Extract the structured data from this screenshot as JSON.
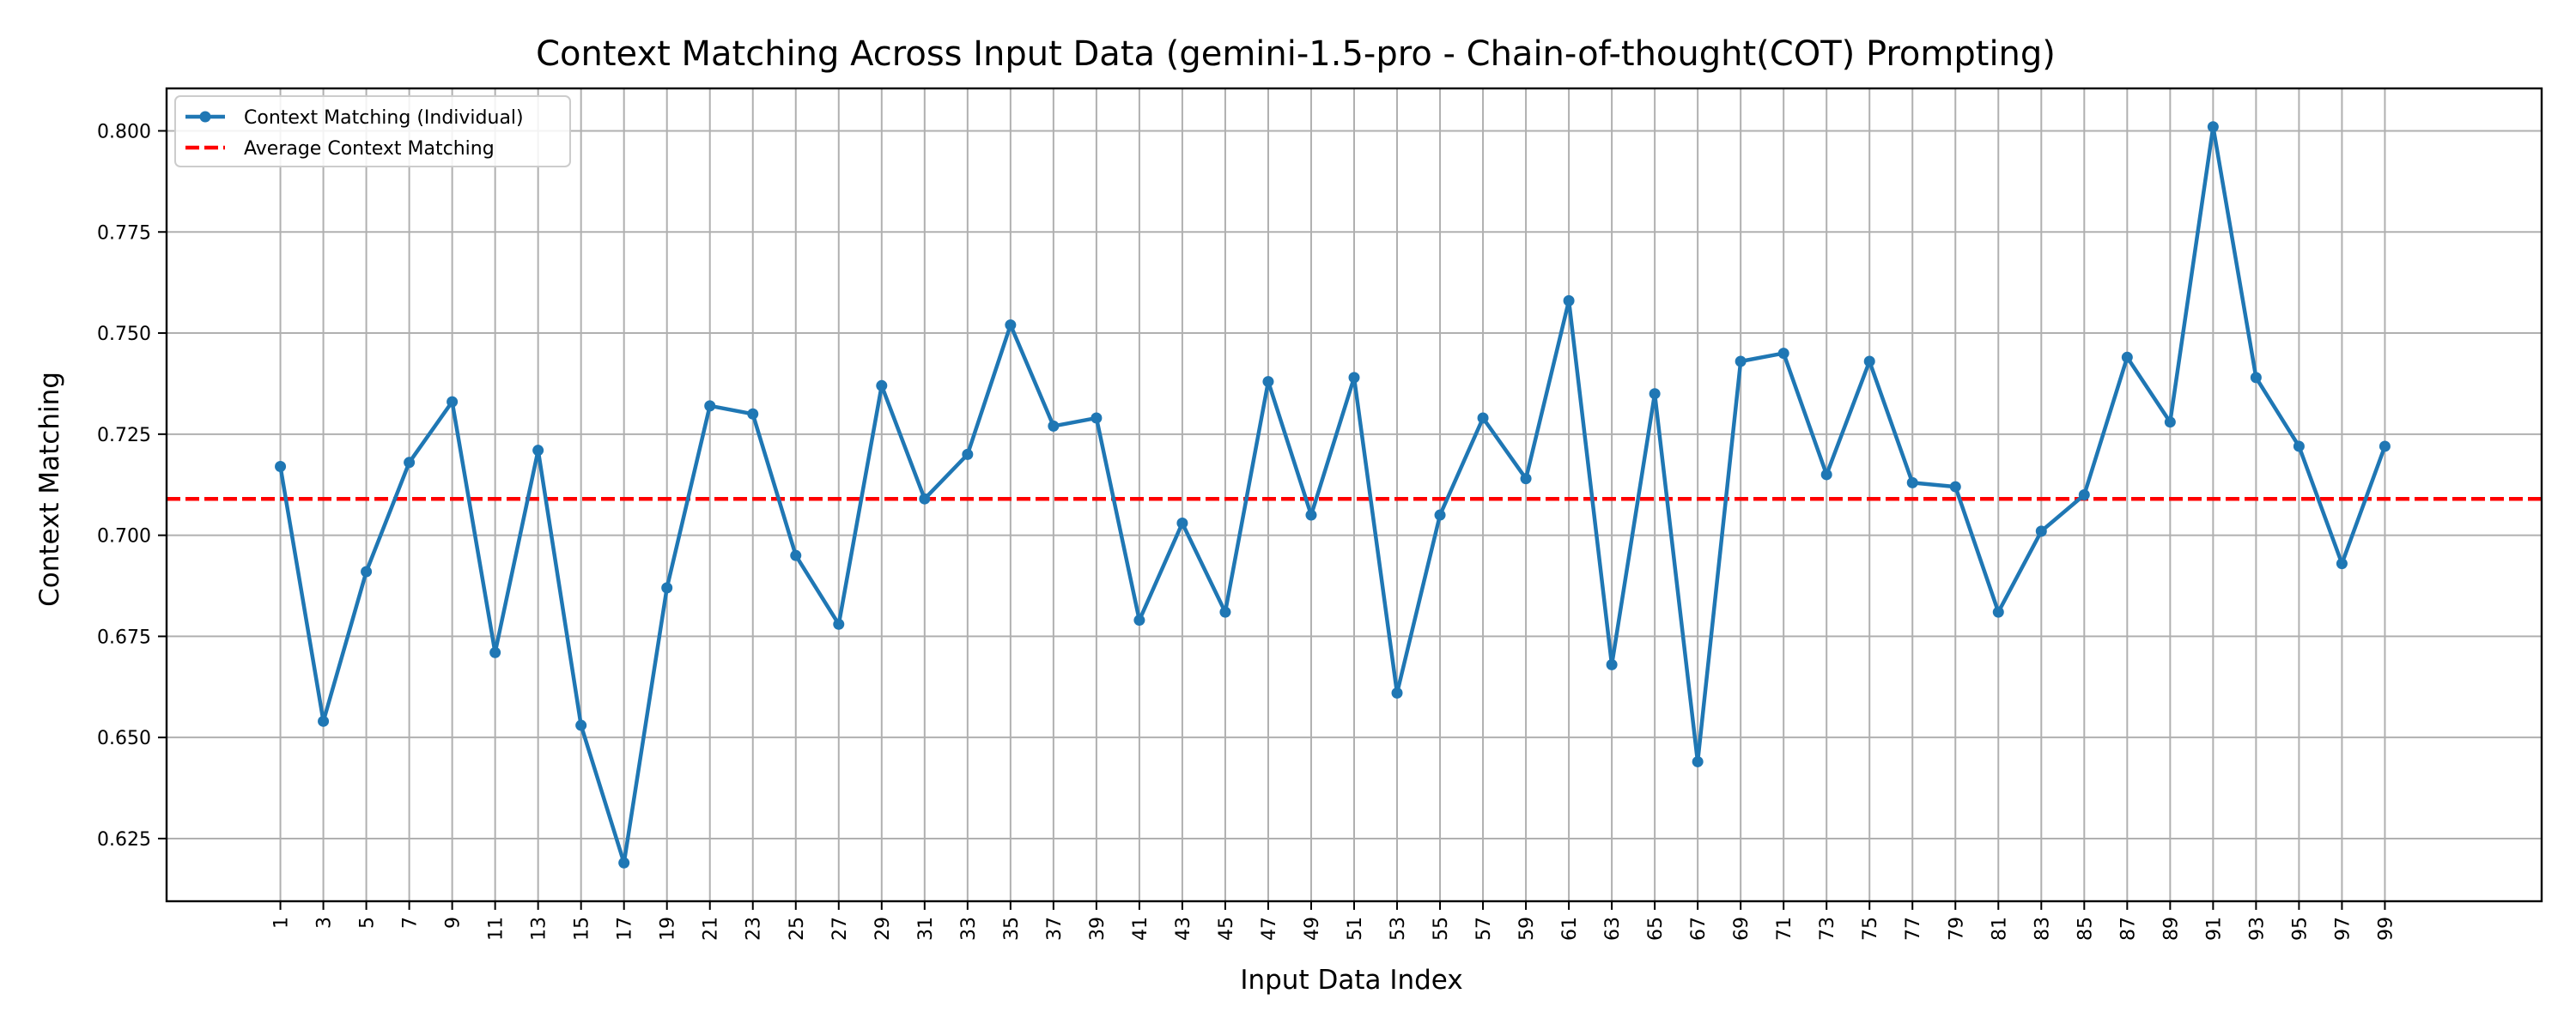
{
  "chart_data": {
    "type": "line",
    "title": "Context Matching Across Input Data (gemini-1.5-pro - Chain-of-thought(COT) Prompting)",
    "xlabel": "Input Data Index",
    "ylabel": "Context Matching",
    "xlim": [
      -4.3,
      106.3
    ],
    "ylim": [
      0.6095,
      0.8105
    ],
    "xticks": [
      1,
      3,
      5,
      7,
      9,
      11,
      13,
      15,
      17,
      19,
      21,
      23,
      25,
      27,
      29,
      31,
      33,
      35,
      37,
      39,
      41,
      43,
      45,
      47,
      49,
      51,
      53,
      55,
      57,
      59,
      61,
      63,
      65,
      67,
      69,
      71,
      73,
      75,
      77,
      79,
      81,
      83,
      85,
      87,
      89,
      91,
      93,
      95,
      97,
      99
    ],
    "yticks": [
      0.625,
      0.65,
      0.675,
      0.7,
      0.725,
      0.75,
      0.775,
      0.8
    ],
    "ytick_labels": [
      "0.625",
      "0.650",
      "0.675",
      "0.700",
      "0.725",
      "0.750",
      "0.775",
      "0.800"
    ],
    "grid": true,
    "legend_position": "top-left",
    "series": [
      {
        "name": "Context Matching (Individual)",
        "style": "solid-line-with-markers",
        "color": "#1f77b4",
        "x": [
          1,
          3,
          5,
          7,
          9,
          11,
          13,
          15,
          17,
          19,
          21,
          23,
          25,
          27,
          29,
          31,
          33,
          35,
          37,
          39,
          41,
          43,
          45,
          47,
          49,
          51,
          53,
          55,
          57,
          59,
          61,
          63,
          65,
          67,
          69,
          71,
          73,
          75,
          77,
          79,
          81,
          83,
          85,
          87,
          89,
          91,
          93,
          95,
          97,
          99
        ],
        "y": [
          0.717,
          0.654,
          0.691,
          0.718,
          0.733,
          0.671,
          0.721,
          0.653,
          0.619,
          0.687,
          0.732,
          0.73,
          0.695,
          0.678,
          0.737,
          0.709,
          0.72,
          0.752,
          0.727,
          0.729,
          0.679,
          0.703,
          0.681,
          0.738,
          0.705,
          0.739,
          0.661,
          0.705,
          0.729,
          0.714,
          0.758,
          0.668,
          0.735,
          0.644,
          0.743,
          0.745,
          0.715,
          0.743,
          0.713,
          0.712,
          0.681,
          0.701,
          0.71,
          0.744,
          0.728,
          0.801,
          0.739,
          0.722,
          0.693,
          0.722
        ]
      },
      {
        "name": "Average Context Matching",
        "style": "dashed",
        "color": "#ff0000",
        "value": 0.709
      }
    ]
  }
}
